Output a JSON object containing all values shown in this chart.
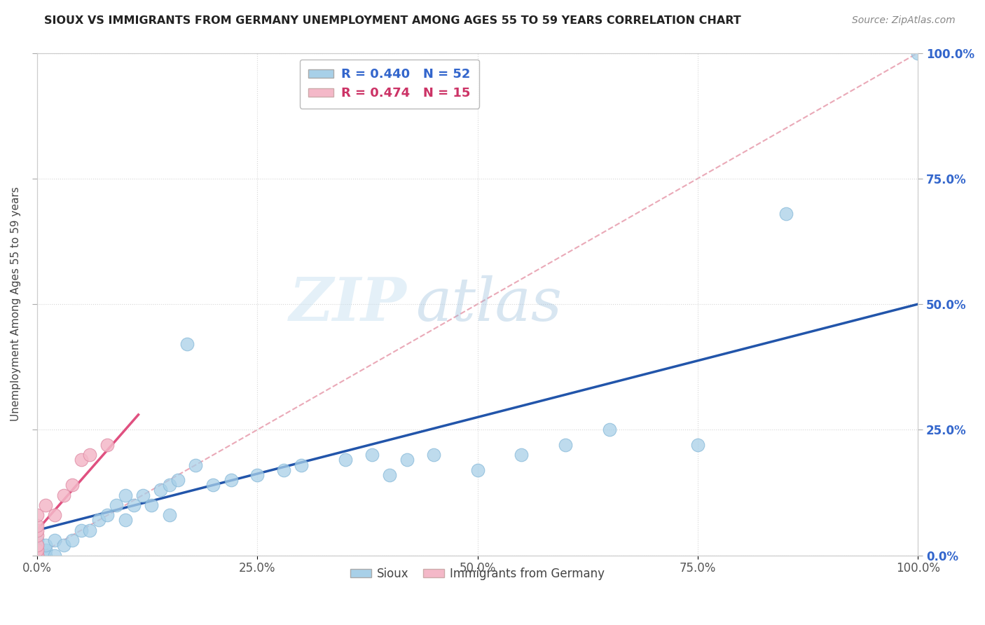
{
  "title": "SIOUX VS IMMIGRANTS FROM GERMANY UNEMPLOYMENT AMONG AGES 55 TO 59 YEARS CORRELATION CHART",
  "source": "Source: ZipAtlas.com",
  "ylabel": "Unemployment Among Ages 55 to 59 years",
  "xlim": [
    0,
    1.0
  ],
  "ylim": [
    0,
    1.0
  ],
  "xtick_labels": [
    "0.0%",
    "25.0%",
    "50.0%",
    "75.0%",
    "100.0%"
  ],
  "xtick_values": [
    0.0,
    0.25,
    0.5,
    0.75,
    1.0
  ],
  "ytick_values": [
    0.0,
    0.25,
    0.5,
    0.75,
    1.0
  ],
  "right_ytick_labels": [
    "0.0%",
    "25.0%",
    "50.0%",
    "75.0%",
    "100.0%"
  ],
  "sioux_color": "#a8d0e8",
  "germany_color": "#f4b8c8",
  "sioux_R": 0.44,
  "sioux_N": 52,
  "germany_R": 0.474,
  "germany_N": 15,
  "diagonal_color": "#e8a0b0",
  "sioux_line_color": "#2255aa",
  "germany_line_color": "#e05080",
  "background_color": "#FFFFFF",
  "watermark_zip": "ZIP",
  "watermark_atlas": "atlas",
  "sioux_x": [
    0.0,
    0.0,
    0.0,
    0.0,
    0.0,
    0.0,
    0.0,
    0.0,
    0.0,
    0.0,
    0.0,
    0.0,
    0.01,
    0.01,
    0.01,
    0.02,
    0.02,
    0.03,
    0.04,
    0.05,
    0.06,
    0.07,
    0.08,
    0.09,
    0.1,
    0.1,
    0.11,
    0.12,
    0.13,
    0.14,
    0.15,
    0.15,
    0.16,
    0.17,
    0.18,
    0.2,
    0.22,
    0.25,
    0.28,
    0.3,
    0.35,
    0.38,
    0.4,
    0.42,
    0.45,
    0.5,
    0.55,
    0.6,
    0.65,
    0.75,
    0.85,
    1.0
  ],
  "sioux_y": [
    0.0,
    0.0,
    0.0,
    0.0,
    0.0,
    0.0,
    0.0,
    0.0,
    0.01,
    0.01,
    0.02,
    0.03,
    0.0,
    0.01,
    0.02,
    0.0,
    0.03,
    0.02,
    0.03,
    0.05,
    0.05,
    0.07,
    0.08,
    0.1,
    0.07,
    0.12,
    0.1,
    0.12,
    0.1,
    0.13,
    0.08,
    0.14,
    0.15,
    0.42,
    0.18,
    0.14,
    0.15,
    0.16,
    0.17,
    0.18,
    0.19,
    0.2,
    0.16,
    0.19,
    0.2,
    0.17,
    0.2,
    0.22,
    0.25,
    0.22,
    0.68,
    1.0
  ],
  "germany_x": [
    0.0,
    0.0,
    0.0,
    0.0,
    0.0,
    0.0,
    0.0,
    0.0,
    0.01,
    0.02,
    0.03,
    0.04,
    0.05,
    0.06,
    0.08
  ],
  "germany_y": [
    0.0,
    0.0,
    0.01,
    0.02,
    0.04,
    0.05,
    0.06,
    0.08,
    0.1,
    0.08,
    0.12,
    0.14,
    0.19,
    0.2,
    0.22
  ],
  "sioux_line_x0": 0.0,
  "sioux_line_y0": 0.05,
  "sioux_line_x1": 1.0,
  "sioux_line_y1": 0.5,
  "germany_line_x0": 0.0,
  "germany_line_y0": 0.05,
  "germany_line_x1": 0.115,
  "germany_line_y1": 0.28
}
